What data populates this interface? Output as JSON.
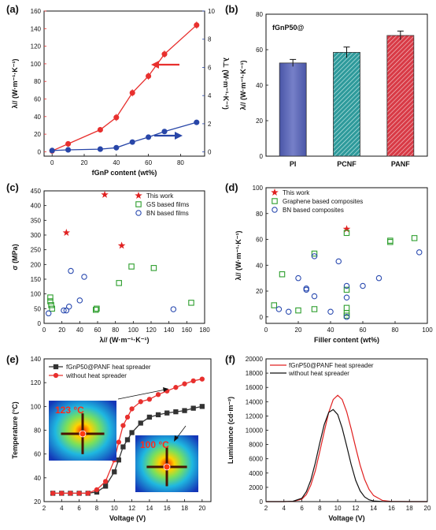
{
  "chart_data": [
    {
      "panel": "(a)",
      "type": "line",
      "x": [
        0,
        10,
        30,
        40,
        50,
        60,
        70,
        90
      ],
      "series": [
        {
          "axis": "left",
          "values": [
            1,
            9,
            25,
            39,
            67,
            86,
            111,
            144
          ],
          "color": "#e8302e"
        },
        {
          "axis": "right",
          "values": [
            0.1,
            0.15,
            0.2,
            0.3,
            0.7,
            1.05,
            1.45,
            2.1
          ],
          "color": "#2846a8"
        }
      ],
      "xlabel": "fGnP content (wt%)",
      "ylabel": "λ// (W·m⁻¹·K⁻¹)",
      "y2label": "λ⊥ (W·m⁻¹·K⁻¹)",
      "xlim": [
        -5,
        95
      ],
      "ylim": [
        -5,
        160
      ],
      "y2lim": [
        -0.3,
        10
      ],
      "xticks": [
        0,
        20,
        40,
        60,
        80
      ],
      "yticks": [
        0,
        20,
        40,
        60,
        80,
        100,
        120,
        140,
        160
      ],
      "y2ticks": [
        0,
        2,
        4,
        6,
        8,
        10
      ]
    },
    {
      "panel": "(b)",
      "type": "bar",
      "title": "fGnP50@",
      "categories": [
        "PI",
        "PCNF",
        "PANF"
      ],
      "values": [
        52.5,
        58.5,
        68.0
      ],
      "errors": [
        2.0,
        3.0,
        2.5
      ],
      "colors": [
        "#5964b4",
        "#2e9a9b",
        "#d83a46"
      ],
      "ylabel": "λ// (W·m⁻¹·K⁻¹)",
      "ylim": [
        0,
        80
      ],
      "yticks": [
        0,
        20,
        40,
        60,
        80
      ]
    },
    {
      "panel": "(c)",
      "type": "scatter",
      "series": [
        {
          "name": "This work",
          "marker": "star",
          "color": "#e02020",
          "x": [
            68,
            25,
            87
          ],
          "y": [
            437,
            308,
            264
          ]
        },
        {
          "name": "GS based films",
          "marker": "square",
          "color": "#2d9e2d",
          "x": [
            7,
            7,
            8,
            9,
            58,
            59,
            84,
            98,
            123,
            165
          ],
          "y": [
            88,
            75,
            62,
            50,
            46,
            50,
            137,
            193,
            188,
            70
          ]
        },
        {
          "name": "BN based films",
          "marker": "circle",
          "color": "#2b4bb0",
          "x": [
            5,
            22,
            25,
            28,
            30,
            40,
            45,
            145
          ],
          "y": [
            34,
            44,
            44,
            57,
            178,
            78,
            158,
            48
          ]
        }
      ],
      "ylabel": "σ (MPa)",
      "xlabel": "λ// (W·m⁻¹·K⁻¹)",
      "xlim": [
        0,
        180
      ],
      "ylim": [
        0,
        450
      ],
      "xticks": [
        0,
        20,
        40,
        60,
        80,
        100,
        120,
        140,
        160,
        180
      ],
      "yticks": [
        0,
        50,
        100,
        150,
        200,
        250,
        300,
        350,
        400,
        450
      ]
    },
    {
      "panel": "(d)",
      "type": "scatter",
      "series": [
        {
          "name": "This work",
          "marker": "star",
          "color": "#e02020",
          "x": [
            50
          ],
          "y": [
            68
          ]
        },
        {
          "name": "Graphene based composites",
          "marker": "square",
          "color": "#2d9e2d",
          "x": [
            5,
            10,
            20,
            30,
            30,
            50,
            50,
            50,
            50,
            50,
            77,
            77,
            92
          ],
          "y": [
            9,
            33,
            5,
            49,
            6,
            65,
            21,
            7,
            3,
            1,
            58,
            59,
            61
          ]
        },
        {
          "name": "BN based composites",
          "marker": "circle",
          "color": "#2b4bb0",
          "x": [
            8,
            14,
            20,
            25,
            25,
            30,
            30,
            40,
            45,
            50,
            50,
            50,
            60,
            70,
            95
          ],
          "y": [
            6,
            4,
            30,
            22,
            21,
            47,
            16,
            4,
            43,
            24,
            15,
            0,
            24,
            30,
            50
          ]
        }
      ],
      "ylabel": "λ// (W·m⁻¹·K⁻¹)",
      "xlabel": "Filler content (wt%)",
      "xlim": [
        0,
        100
      ],
      "ylim": [
        -5,
        100
      ],
      "xticks": [
        0,
        20,
        40,
        60,
        80,
        100
      ],
      "yticks": [
        0,
        20,
        40,
        60,
        80,
        100
      ]
    },
    {
      "panel": "(e)",
      "type": "line",
      "x": [
        3,
        4,
        5,
        6,
        7,
        8,
        9,
        10,
        10.5,
        11,
        11.5,
        12,
        13,
        14,
        15,
        16,
        17,
        18,
        19,
        20
      ],
      "series": [
        {
          "name": "fGnP50@PANF heat spreader",
          "marker": "square",
          "color": "#333333",
          "values": [
            27,
            27,
            27,
            27,
            27,
            28,
            33,
            45,
            55,
            66,
            72,
            78,
            86,
            91,
            93,
            94.5,
            95.5,
            96.5,
            98.5,
            100
          ]
        },
        {
          "name": "without heat spreader",
          "marker": "circle",
          "color": "#e8302e",
          "values": [
            27,
            27,
            27,
            27,
            27,
            30,
            37,
            55,
            70,
            84,
            91,
            98,
            104,
            106,
            110,
            113,
            116,
            119,
            121.5,
            123
          ]
        }
      ],
      "xlabel": "Voltage (V)",
      "ylabel": "Temperature (°C)",
      "xlim": [
        2,
        21
      ],
      "ylim": [
        20,
        140
      ],
      "xticks": [
        2,
        4,
        6,
        8,
        10,
        12,
        14,
        16,
        18,
        20
      ],
      "yticks": [
        20,
        40,
        60,
        80,
        100,
        120,
        140
      ],
      "annotations": [
        "123 °C",
        "100 °C"
      ]
    },
    {
      "panel": "(f)",
      "type": "line",
      "x": [
        2,
        3,
        4,
        5,
        6,
        6.5,
        7,
        7.5,
        8,
        8.5,
        9,
        9.5,
        10,
        10.5,
        11,
        11.5,
        12,
        12.5,
        13,
        13.5,
        14,
        15,
        16,
        18,
        20
      ],
      "series": [
        {
          "name": "fGnP50@PANF heat spreader",
          "color": "#e02020",
          "values": [
            0,
            0,
            0,
            30,
            350,
            1000,
            2300,
            4300,
            7000,
            9800,
            12500,
            14300,
            14900,
            14300,
            12600,
            10200,
            7600,
            5100,
            3100,
            1700,
            850,
            160,
            25,
            0,
            0
          ]
        },
        {
          "name": "without heat spreader",
          "color": "#111111",
          "values": [
            0,
            0,
            0,
            40,
            480,
            1400,
            3000,
            5400,
            8200,
            10800,
            12500,
            12900,
            12200,
            10300,
            7800,
            5200,
            3000,
            1500,
            650,
            250,
            90,
            10,
            0,
            0,
            0
          ]
        }
      ],
      "xlabel": "Voltage (V)",
      "ylabel": "Luminance (cd·m⁻²)",
      "xlim": [
        2,
        20
      ],
      "ylim": [
        0,
        20000
      ],
      "xticks": [
        2,
        4,
        6,
        8,
        10,
        12,
        14,
        16,
        18,
        20
      ],
      "yticks": [
        0,
        2000,
        4000,
        6000,
        8000,
        10000,
        12000,
        14000,
        16000,
        18000,
        20000
      ]
    }
  ],
  "labels": {
    "a": "(a)",
    "b": "(b)",
    "c": "(c)",
    "d": "(d)",
    "e": "(e)",
    "f": "(f)"
  }
}
